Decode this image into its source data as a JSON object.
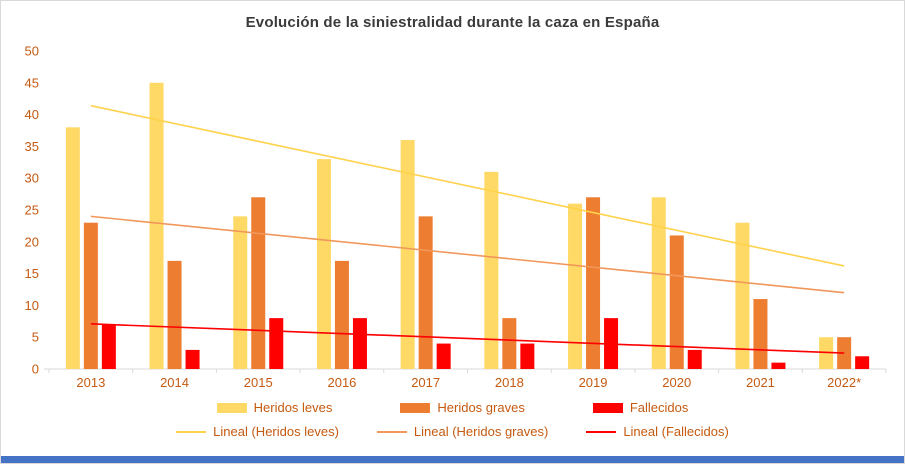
{
  "chart_data": {
    "type": "bar",
    "title": "Evolución de la siniestralidad durante la caza en España",
    "categories": [
      "2013",
      "2014",
      "2015",
      "2016",
      "2017",
      "2018",
      "2019",
      "2020",
      "2021",
      "2022*"
    ],
    "series": [
      {
        "name": "Heridos leves",
        "color": "#FFD966",
        "values": [
          38,
          45,
          24,
          33,
          36,
          31,
          26,
          27,
          23,
          5
        ]
      },
      {
        "name": "Heridos graves",
        "color": "#ED7D31",
        "values": [
          23,
          17,
          27,
          17,
          24,
          8,
          27,
          21,
          11,
          5
        ]
      },
      {
        "name": "Fallecidos",
        "color": "#FF0000",
        "values": [
          7,
          3,
          8,
          8,
          4,
          4,
          8,
          3,
          1,
          2
        ]
      }
    ],
    "trendlines": [
      {
        "name": "Lineal (Heridos leves)",
        "color": "#FFD24B",
        "start": 41.4,
        "end": 16.2
      },
      {
        "name": "Lineal (Heridos graves)",
        "color": "#F1975A",
        "start": 24.0,
        "end": 12.0
      },
      {
        "name": "Lineal (Fallecidos)",
        "color": "#FF0000",
        "start": 7.1,
        "end": 2.5
      }
    ],
    "ylim": [
      0,
      50
    ],
    "ytick_step": 5,
    "grid": false,
    "legend_position": "bottom",
    "axis_label_color": "#C55A11",
    "axis_line_color": "#D9D9D9"
  },
  "footer": {
    "accent_color": "#4472C4"
  }
}
